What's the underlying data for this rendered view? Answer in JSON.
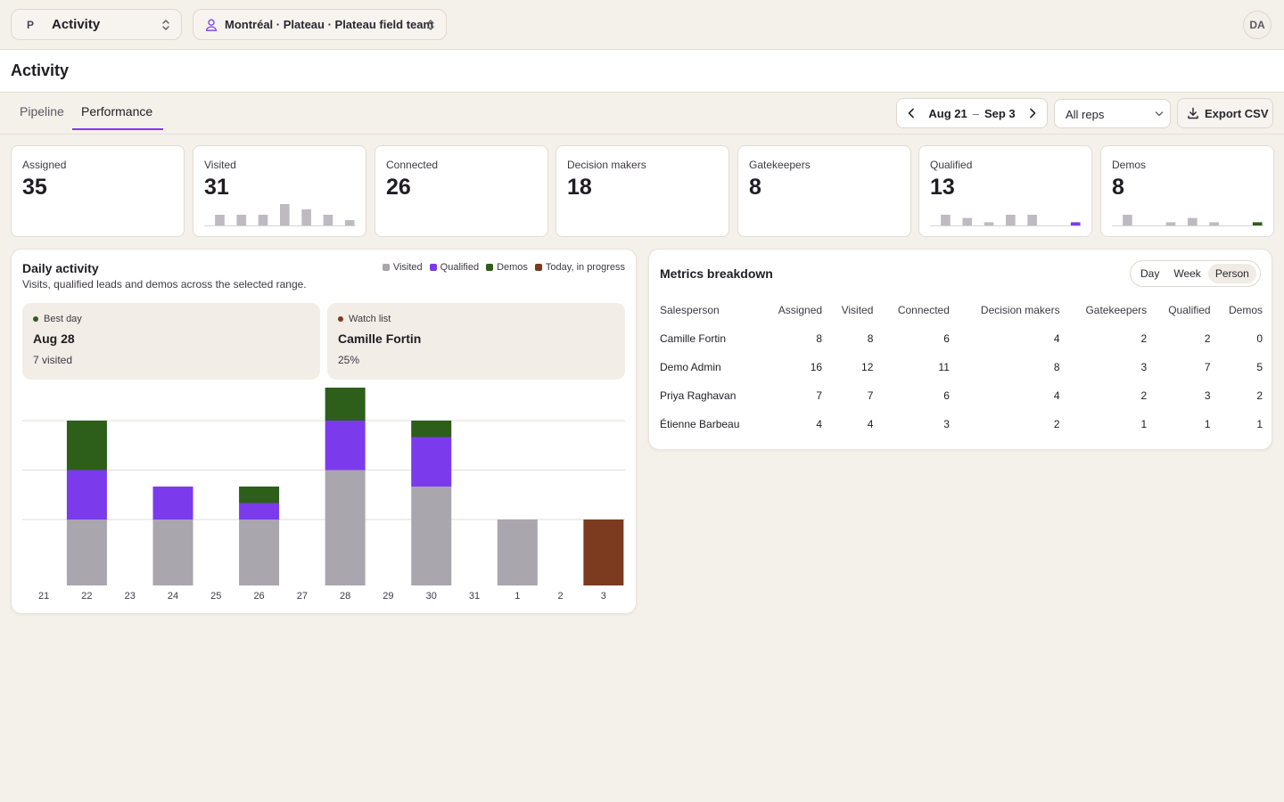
{
  "topbar": {
    "workspace_badge": "P",
    "workspace_name": "Activity",
    "location": "Montréal · Plateau · Plateau field team",
    "avatar_initials": "DA"
  },
  "page": {
    "title": "Activity"
  },
  "tabs": [
    {
      "label": "Pipeline",
      "active": false
    },
    {
      "label": "Performance",
      "active": true
    }
  ],
  "toolbar": {
    "date_start": "Aug 21",
    "date_sep": "–",
    "date_end": "Sep 3",
    "reps_value": "All reps",
    "export_label": "Export CSV"
  },
  "kpis": [
    {
      "label": "Assigned",
      "value": "35"
    },
    {
      "label": "Visited",
      "value": "31",
      "spark": [
        0,
        2,
        0,
        2,
        0,
        2,
        0,
        4,
        0,
        3,
        0,
        2,
        0,
        1
      ],
      "spark_color": "#bdbac2"
    },
    {
      "label": "Connected",
      "value": "26"
    },
    {
      "label": "Decision makers",
      "value": "18"
    },
    {
      "label": "Gatekeepers",
      "value": "8"
    },
    {
      "label": "Qualified",
      "value": "13",
      "spark": [
        0,
        2,
        0,
        1.4,
        0,
        0.6,
        0,
        2,
        0,
        2,
        0,
        0,
        0,
        0.6
      ],
      "spark_color": "#bdbac2",
      "spark_last_color": "#7c3aed"
    },
    {
      "label": "Demos",
      "value": "8",
      "spark": [
        0,
        2,
        0,
        0,
        0,
        0.6,
        0,
        1.4,
        0,
        0.6,
        0,
        0,
        0,
        0.6
      ],
      "spark_color": "#bdbac2",
      "spark_last_color": "#2d5e1a"
    }
  ],
  "daily": {
    "title": "Daily activity",
    "subtitle": "Visits, qualified leads and demos across the selected range.",
    "legend": [
      {
        "label": "Visited",
        "color": "#a9a6ae"
      },
      {
        "label": "Qualified",
        "color": "#7c3aed"
      },
      {
        "label": "Demos",
        "color": "#2d5e1a"
      },
      {
        "label": "Today, in progress",
        "color": "#7c3a1f"
      }
    ],
    "best": {
      "kicker": "Best day",
      "title": "Aug 28",
      "sub": "7 visited",
      "dot_color": "#2d5e1a"
    },
    "watch": {
      "kicker": "Watch list",
      "title": "Camille Fortin",
      "sub": "25%",
      "dot_color": "#7c3a1f"
    }
  },
  "chart_data": {
    "type": "bar",
    "stacked": true,
    "categories": [
      "21",
      "22",
      "23",
      "24",
      "25",
      "26",
      "27",
      "28",
      "29",
      "30",
      "31",
      "1",
      "2",
      "3"
    ],
    "series": [
      {
        "name": "Visited",
        "color": "#a9a6ae",
        "values": [
          0,
          2,
          0,
          2,
          0,
          2,
          0,
          3.5,
          0,
          3,
          0,
          2,
          0,
          0
        ]
      },
      {
        "name": "Qualified",
        "color": "#7c3aed",
        "values": [
          0,
          1.5,
          0,
          1,
          0,
          0.5,
          0,
          1.5,
          0,
          1.5,
          0,
          0,
          0,
          0
        ]
      },
      {
        "name": "Demos",
        "color": "#2d5e1a",
        "values": [
          0,
          1.5,
          0,
          0,
          0,
          0.5,
          0,
          1,
          0,
          0.5,
          0,
          0,
          0,
          0
        ]
      },
      {
        "name": "Today, in progress",
        "color": "#7c3a1f",
        "values": [
          0,
          0,
          0,
          0,
          0,
          0,
          0,
          0,
          0,
          0,
          0,
          0,
          0,
          2
        ]
      }
    ],
    "ylim": [
      0,
      6
    ],
    "gridlines": [
      2,
      3.5,
      5
    ],
    "grid": true
  },
  "metrics": {
    "title": "Metrics breakdown",
    "segments": [
      {
        "label": "Day",
        "active": false
      },
      {
        "label": "Week",
        "active": false
      },
      {
        "label": "Person",
        "active": true
      }
    ],
    "columns": [
      "Salesperson",
      "Assigned",
      "Visited",
      "Connected",
      "Decision makers",
      "Gatekeepers",
      "Qualified",
      "Demos"
    ],
    "rows": [
      [
        "Camille Fortin",
        "8",
        "8",
        "6",
        "4",
        "2",
        "2",
        "0"
      ],
      [
        "Demo Admin",
        "16",
        "12",
        "11",
        "8",
        "3",
        "7",
        "5"
      ],
      [
        "Priya Raghavan",
        "7",
        "7",
        "6",
        "4",
        "2",
        "3",
        "2"
      ],
      [
        "Étienne Barbeau",
        "4",
        "4",
        "3",
        "2",
        "1",
        "1",
        "1"
      ]
    ]
  }
}
